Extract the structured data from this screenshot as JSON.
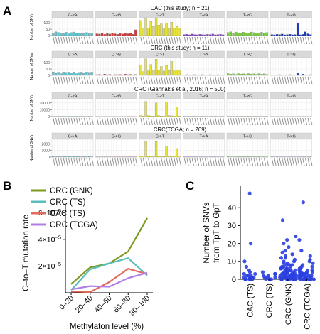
{
  "panel_labels": {
    "a": "A",
    "b": "B",
    "c": "C"
  },
  "colors": {
    "C>A": "#5ec7d4",
    "C>G": "#d23c3c",
    "C>T": "#e8e43a",
    "T>A": "#8a43c9",
    "T>C": "#7ccc43",
    "T>G": "#1a36c4",
    "strip_fill": "#d9d9d9",
    "panel_bg": "#ffffff",
    "grid": "#e3e3e3",
    "point_blue": "#2a3fe0"
  },
  "chart_data": [
    {
      "type": "bar",
      "panel": "A",
      "ylabel": "Number of SNVs",
      "mutation_types": [
        "C->A",
        "C->G",
        "C->T",
        "T->A",
        "T->C",
        "T->G"
      ],
      "contexts_per_type": 16,
      "facets": [
        {
          "title": "CAC (this study; n = 21)",
          "yticks": [
            "0",
            "50",
            "100"
          ],
          "ylim": [
            0,
            140
          ],
          "values": {
            "C->A": [
              22,
              30,
              25,
              18,
              20,
              26,
              14,
              24,
              28,
              20,
              18,
              22,
              16,
              24,
              20,
              18
            ],
            "C->G": [
              14,
              12,
              18,
              10,
              16,
              12,
              20,
              14,
              10,
              16,
              12,
              18,
              14,
              20,
              10,
              45
            ],
            "C->T": [
              118,
              60,
              140,
              58,
              110,
              72,
              138,
              82,
              92,
              60,
              96,
              60,
              106,
              58,
              72,
              60
            ],
            "T->A": [
              8,
              10,
              6,
              12,
              8,
              6,
              10,
              8,
              6,
              10,
              8,
              12,
              6,
              8,
              10,
              6
            ],
            "T->C": [
              24,
              30,
              20,
              28,
              22,
              18,
              26,
              22,
              20,
              28,
              24,
              18,
              22,
              26,
              20,
              24
            ],
            "T->G": [
              8,
              6,
              10,
              8,
              12,
              6,
              8,
              10,
              6,
              8,
              100,
              6,
              10,
              30,
              14,
              8
            ]
          }
        },
        {
          "title": "CRC (this study; n = 11)",
          "yticks": [
            "0",
            "50",
            "100"
          ],
          "ylim": [
            0,
            140
          ],
          "values": {
            "C->A": [
              22,
              16,
              20,
              14,
              24,
              18,
              20,
              16,
              22,
              14,
              18,
              20,
              16,
              22,
              18,
              20
            ],
            "C->G": [
              6,
              8,
              5,
              10,
              6,
              8,
              5,
              7,
              6,
              8,
              5,
              10,
              6,
              8,
              5,
              7
            ],
            "C->T": [
              80,
              30,
              130,
              36,
              86,
              40,
              128,
              44,
              70,
              34,
              78,
              38,
              110,
              36,
              44,
              40
            ],
            "T->A": [
              4,
              6,
              5,
              4,
              6,
              5,
              4,
              6,
              5,
              4,
              6,
              5,
              4,
              6,
              5,
              4
            ],
            "T->C": [
              14,
              10,
              12,
              8,
              14,
              10,
              12,
              8,
              14,
              10,
              12,
              8,
              14,
              10,
              12,
              8
            ],
            "T->G": [
              4,
              5,
              3,
              6,
              4,
              5,
              3,
              6,
              4,
              5,
              16,
              3,
              10,
              5,
              4,
              6
            ]
          }
        },
        {
          "title": "CRC (Giannakis et al, 2016; n = 500)",
          "yticks": [
            "0",
            "10000",
            "20000"
          ],
          "ylim": [
            0,
            26000
          ],
          "values": {
            "C->A": [
              400,
              300,
              350,
              250,
              400,
              300,
              350,
              250,
              400,
              300,
              350,
              250,
              400,
              300,
              350,
              250
            ],
            "C->G": [
              100,
              80,
              90,
              70,
              100,
              80,
              90,
              70,
              100,
              80,
              90,
              70,
              100,
              80,
              90,
              70
            ],
            "C->T": [
              1200,
              800,
              22000,
              1500,
              1000,
              700,
              20000,
              1200,
              900,
              600,
              21500,
              1400,
              1100,
              700,
              14000,
              900
            ],
            "T->A": [
              150,
              120,
              140,
              110,
              150,
              120,
              140,
              110,
              150,
              120,
              140,
              110,
              150,
              120,
              140,
              110
            ],
            "T->C": [
              300,
              250,
              280,
              220,
              300,
              250,
              280,
              220,
              300,
              250,
              280,
              220,
              300,
              250,
              280,
              220
            ],
            "T->G": [
              100,
              80,
              90,
              70,
              100,
              80,
              90,
              70,
              100,
              80,
              90,
              70,
              100,
              80,
              90,
              70
            ]
          }
        },
        {
          "title": "CRC(TCGA; n = 209)",
          "yticks": [
            "0",
            "1000",
            "2000"
          ],
          "ylim": [
            0,
            2700
          ],
          "values": {
            "C->A": [
              80,
              60,
              70,
              50,
              80,
              60,
              70,
              50,
              80,
              60,
              70,
              50,
              80,
              60,
              70,
              50
            ],
            "C->G": [
              30,
              20,
              25,
              18,
              30,
              20,
              25,
              18,
              30,
              20,
              25,
              18,
              30,
              20,
              25,
              18
            ],
            "C->T": [
              200,
              150,
              2400,
              200,
              150,
              120,
              2350,
              180,
              140,
              110,
              1700,
              160,
              160,
              120,
              1300,
              140
            ],
            "T->A": [
              40,
              30,
              35,
              25,
              40,
              30,
              35,
              25,
              40,
              30,
              35,
              25,
              40,
              30,
              35,
              25
            ],
            "T->C": [
              60,
              50,
              55,
              45,
              60,
              50,
              55,
              45,
              60,
              50,
              55,
              45,
              60,
              50,
              55,
              45
            ],
            "T->G": [
              30,
              25,
              28,
              22,
              30,
              25,
              28,
              22,
              30,
              25,
              28,
              22,
              30,
              25,
              28,
              22
            ]
          }
        }
      ]
    },
    {
      "type": "line",
      "panel": "B",
      "ylabel": "C–to–T mutation rate",
      "xlabel": "Methylaton level (%)",
      "categories": [
        "0–20",
        "20–40",
        "40–60",
        "60–80",
        "80–100"
      ],
      "ylim": [
        0,
        6.6e-05
      ],
      "yticks": [
        {
          "value": 2e-05,
          "mant": "2×10",
          "exp": "−5"
        },
        {
          "value": 4e-05,
          "mant": "4×10",
          "exp": "−5"
        },
        {
          "value": 6e-05,
          "mant": "6×10",
          "exp": "−5"
        }
      ],
      "series": [
        {
          "name": "CRC (GNK)",
          "color": "#7a9a1c",
          "values": [
            6.5e-06,
            1.9e-05,
            2.2e-05,
            3.1e-05,
            5.6e-05
          ]
        },
        {
          "name": "CRC (TS)",
          "color": "#5bbdbd",
          "values": [
            2e-06,
            1.75e-05,
            2.2e-05,
            2.6e-05,
            1.3e-05
          ]
        },
        {
          "name": "CAC (TS)",
          "color": "#e46b5c",
          "values": [
            1e-06,
            5e-07,
            8e-06,
            1.8e-05,
            1.4e-05
          ]
        },
        {
          "name": "CRC (TCGA)",
          "color": "#b07ee6",
          "values": [
            2.5e-06,
            5e-06,
            4.5e-06,
            1.1e-05,
            1.5e-05
          ]
        }
      ]
    },
    {
      "type": "scatter",
      "panel": "C",
      "ylabel_lines": [
        "Number of SNVs",
        "from TpT to GpT"
      ],
      "categories": [
        "CAC (TS)",
        "CRC (TS)",
        "CRC (GNK)",
        "CRC (TCGA)"
      ],
      "ylim": [
        0,
        52
      ],
      "yticks": [
        0,
        10,
        20,
        30,
        40
      ],
      "points": [
        [
          48,
          20,
          10,
          7,
          5,
          4,
          3,
          3,
          2,
          2,
          2,
          1,
          1,
          1,
          1,
          0,
          0,
          0,
          0,
          0,
          0
        ],
        [
          4,
          3,
          3,
          2,
          2,
          1,
          1,
          1,
          0,
          0,
          0
        ],
        [
          33,
          24,
          22,
          20,
          18,
          16,
          15,
          14,
          13,
          12,
          12,
          11,
          10,
          10,
          9,
          9,
          8,
          8,
          8,
          7,
          7,
          7,
          6,
          6,
          6,
          6,
          5,
          5,
          5,
          5,
          5,
          4,
          4,
          4,
          4,
          4,
          4,
          3,
          3,
          3,
          3,
          3,
          3,
          3,
          2,
          2,
          2,
          2,
          2,
          2,
          2,
          2,
          1,
          1,
          1,
          1,
          1,
          1,
          1,
          1,
          1,
          0,
          0,
          0,
          0,
          0,
          0,
          0,
          0,
          0,
          0
        ],
        [
          43,
          22,
          16,
          13,
          11,
          10,
          9,
          8,
          7,
          7,
          6,
          6,
          5,
          5,
          5,
          4,
          4,
          4,
          4,
          3,
          3,
          3,
          3,
          3,
          2,
          2,
          2,
          2,
          2,
          2,
          1,
          1,
          1,
          1,
          1,
          1,
          1,
          0,
          0,
          0,
          0,
          0,
          0,
          0,
          0,
          0
        ]
      ]
    }
  ]
}
